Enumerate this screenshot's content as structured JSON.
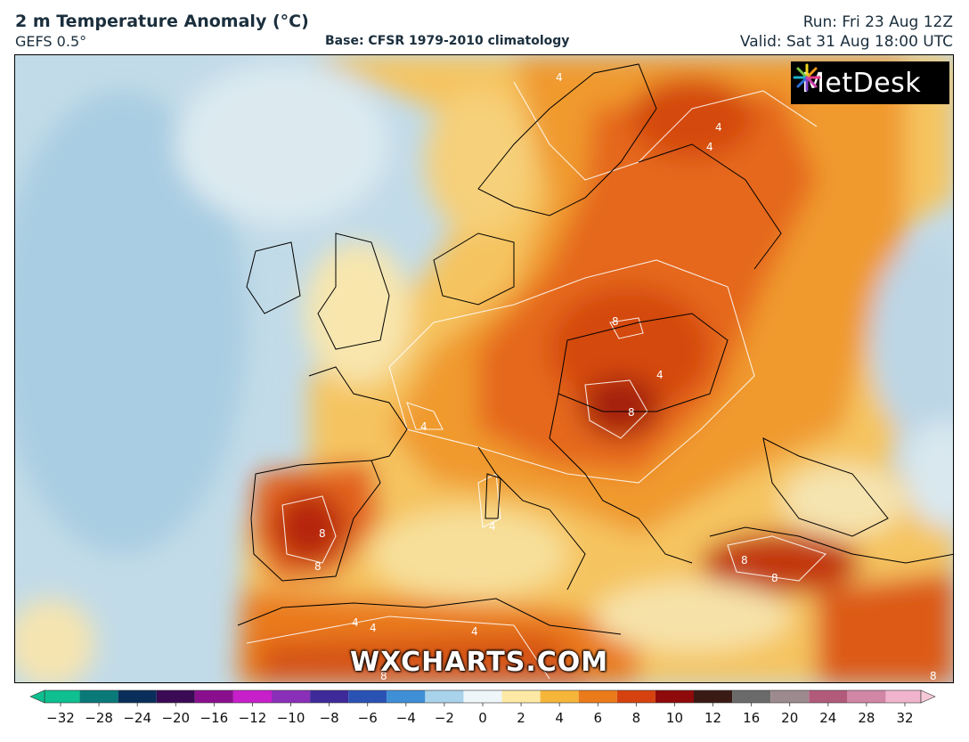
{
  "header": {
    "title": "2 m Temperature Anomaly (°C)",
    "model": "GEFS 0.5°",
    "base": "Base: CFSR 1979-2010 climatology",
    "run": "Run: Fri 23 Aug 12Z",
    "valid": "Valid: Sat 31 Aug 18:00 UTC"
  },
  "logo": {
    "text": "MetDesk",
    "icon": "metdesk-starburst-icon"
  },
  "watermark": "WXCHARTS.COM",
  "contour_labels": [
    "4",
    "4",
    "4",
    "4",
    "4",
    "4",
    "4",
    "4",
    "4",
    "8",
    "8",
    "8",
    "8",
    "8",
    "8",
    "8",
    "8"
  ],
  "colorbar": {
    "ticks": [
      "−32",
      "−28",
      "−24",
      "−20",
      "−16",
      "−12",
      "−10",
      "−8",
      "−6",
      "−4",
      "−2",
      "0",
      "2",
      "4",
      "6",
      "8",
      "10",
      "12",
      "16",
      "20",
      "24",
      "28",
      "32"
    ],
    "colors": [
      "#0fbf8f",
      "#0a7a78",
      "#0a2e5a",
      "#3a0a55",
      "#8a0f8f",
      "#c71fc9",
      "#8a2fb8",
      "#3f2a9a",
      "#2a52b5",
      "#3f8fd6",
      "#a9d3ea",
      "#eef6f9",
      "#fde9a5",
      "#f6b63a",
      "#ea7a1a",
      "#d6420f",
      "#8f0a0a",
      "#3a1a14",
      "#6b6a6a",
      "#9c8a8e",
      "#b25a7a",
      "#d286a6",
      "#f0b5cc"
    ]
  },
  "colors": {
    "ocean_cool": "#b7d3e3",
    "warm_light": "#f7d98a",
    "warm_mid": "#f0a030",
    "warm_hot": "#e06010",
    "warm_max": "#b82a08"
  }
}
